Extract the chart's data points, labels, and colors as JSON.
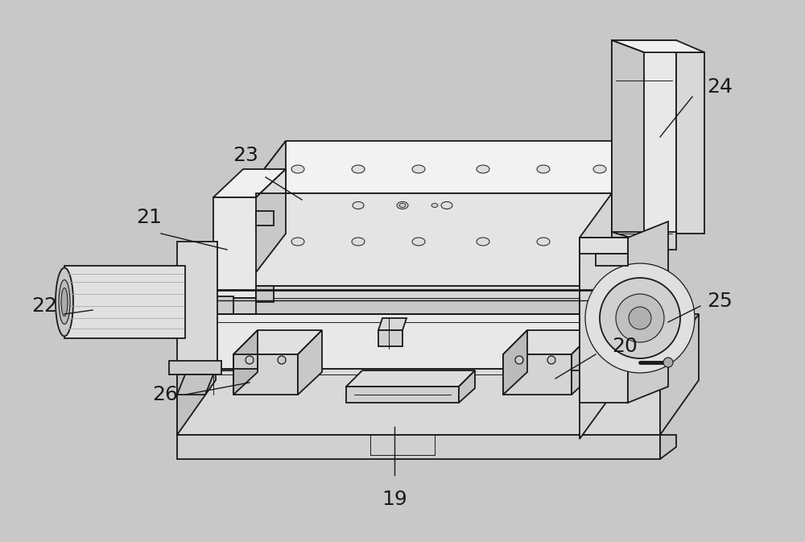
{
  "background_color": "#c8c8c8",
  "line_color": "#1a1a1a",
  "face_light": "#f0f0f0",
  "face_mid": "#e0e0e0",
  "face_dark": "#c4c4c4",
  "face_darker": "#b0b0b0",
  "label_fontsize": 18,
  "leader_lw": 1.0,
  "main_lw": 1.3,
  "thin_lw": 0.7
}
